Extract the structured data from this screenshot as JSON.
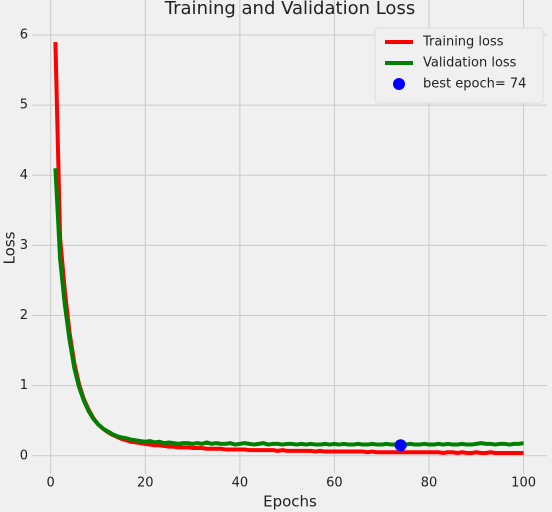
{
  "chart_data": {
    "type": "line",
    "title": "Training and Validation Loss",
    "xlabel": "Epochs",
    "ylabel": "Loss",
    "x": [
      1,
      2,
      3,
      4,
      5,
      6,
      7,
      8,
      9,
      10,
      11,
      12,
      13,
      14,
      15,
      16,
      17,
      18,
      19,
      20,
      21,
      22,
      23,
      24,
      25,
      26,
      27,
      28,
      29,
      30,
      31,
      32,
      33,
      34,
      35,
      36,
      37,
      38,
      39,
      40,
      41,
      42,
      43,
      44,
      45,
      46,
      47,
      48,
      49,
      50,
      51,
      52,
      53,
      54,
      55,
      56,
      57,
      58,
      59,
      60,
      61,
      62,
      63,
      64,
      65,
      66,
      67,
      68,
      69,
      70,
      71,
      72,
      73,
      74,
      75,
      76,
      77,
      78,
      79,
      80,
      81,
      82,
      83,
      84,
      85,
      86,
      87,
      88,
      89,
      90,
      91,
      92,
      93,
      94,
      95,
      96,
      97,
      98,
      99,
      100
    ],
    "series": [
      {
        "name": "Training loss",
        "color": "#ff0000",
        "values": [
          5.9,
          3.1,
          2.35,
          1.75,
          1.32,
          1.02,
          0.81,
          0.66,
          0.54,
          0.45,
          0.39,
          0.34,
          0.3,
          0.27,
          0.24,
          0.22,
          0.2,
          0.19,
          0.18,
          0.17,
          0.16,
          0.15,
          0.15,
          0.14,
          0.13,
          0.13,
          0.12,
          0.12,
          0.12,
          0.11,
          0.11,
          0.11,
          0.1,
          0.1,
          0.1,
          0.1,
          0.09,
          0.09,
          0.09,
          0.09,
          0.09,
          0.08,
          0.08,
          0.08,
          0.08,
          0.08,
          0.08,
          0.07,
          0.08,
          0.07,
          0.07,
          0.07,
          0.07,
          0.07,
          0.07,
          0.06,
          0.07,
          0.06,
          0.06,
          0.06,
          0.06,
          0.06,
          0.06,
          0.06,
          0.06,
          0.06,
          0.05,
          0.06,
          0.05,
          0.05,
          0.05,
          0.05,
          0.05,
          0.05,
          0.05,
          0.05,
          0.05,
          0.05,
          0.05,
          0.05,
          0.05,
          0.05,
          0.04,
          0.05,
          0.05,
          0.04,
          0.05,
          0.04,
          0.04,
          0.05,
          0.04,
          0.04,
          0.05,
          0.04,
          0.04,
          0.04,
          0.04,
          0.04,
          0.04,
          0.04
        ]
      },
      {
        "name": "Validation loss",
        "color": "#008000",
        "values": [
          4.1,
          2.8,
          2.15,
          1.65,
          1.25,
          0.98,
          0.79,
          0.64,
          0.53,
          0.45,
          0.39,
          0.35,
          0.31,
          0.28,
          0.26,
          0.25,
          0.23,
          0.22,
          0.21,
          0.2,
          0.21,
          0.19,
          0.2,
          0.18,
          0.19,
          0.18,
          0.17,
          0.18,
          0.18,
          0.17,
          0.18,
          0.17,
          0.19,
          0.17,
          0.18,
          0.17,
          0.17,
          0.18,
          0.16,
          0.17,
          0.18,
          0.17,
          0.16,
          0.17,
          0.18,
          0.16,
          0.17,
          0.17,
          0.16,
          0.17,
          0.17,
          0.16,
          0.17,
          0.16,
          0.17,
          0.16,
          0.16,
          0.17,
          0.16,
          0.17,
          0.16,
          0.17,
          0.16,
          0.16,
          0.17,
          0.16,
          0.16,
          0.17,
          0.16,
          0.16,
          0.17,
          0.16,
          0.16,
          0.15,
          0.16,
          0.17,
          0.16,
          0.16,
          0.17,
          0.16,
          0.16,
          0.17,
          0.16,
          0.17,
          0.16,
          0.16,
          0.17,
          0.16,
          0.16,
          0.17,
          0.18,
          0.17,
          0.17,
          0.16,
          0.17,
          0.17,
          0.16,
          0.17,
          0.17,
          0.18
        ]
      }
    ],
    "best_point": {
      "name": "best epoch= 74",
      "color": "#0000ff",
      "x": 74,
      "y": 0.15
    },
    "xlim": [
      -3.95,
      104.95
    ],
    "ylim": [
      -0.26,
      6.5
    ],
    "xticks": [
      0,
      20,
      40,
      60,
      80,
      100
    ],
    "yticks": [
      0,
      1,
      2,
      3,
      4,
      5,
      6
    ],
    "grid": true,
    "legend": "upper right"
  }
}
